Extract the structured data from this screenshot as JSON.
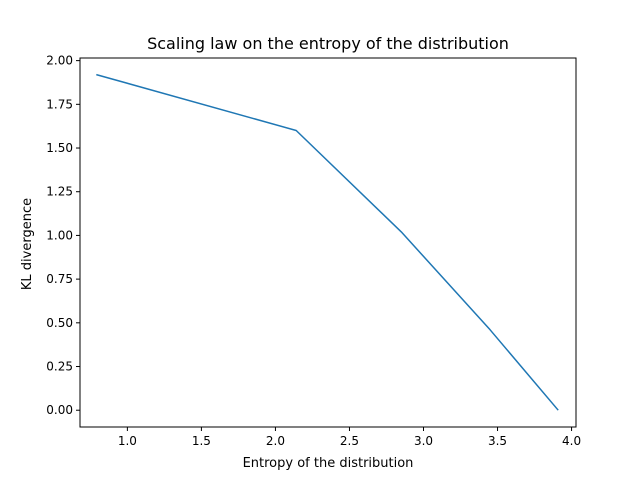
{
  "chart_data": {
    "type": "line",
    "title": "Scaling law on the entropy of the distribution",
    "xlabel": "Entropy of the distribution",
    "ylabel": "KL divergence",
    "xlim": [
      0.68,
      4.03
    ],
    "ylim": [
      -0.096,
      2.015
    ],
    "xticks": [
      1.0,
      1.5,
      2.0,
      2.5,
      3.0,
      3.5,
      4.0
    ],
    "xtick_labels": [
      "1.0",
      "1.5",
      "2.0",
      "2.5",
      "3.0",
      "3.5",
      "4.0"
    ],
    "yticks": [
      0.0,
      0.25,
      0.5,
      0.75,
      1.0,
      1.25,
      1.5,
      1.75,
      2.0
    ],
    "ytick_labels": [
      "0.00",
      "0.25",
      "0.50",
      "0.75",
      "1.00",
      "1.25",
      "1.50",
      "1.75",
      "2.00"
    ],
    "grid": false,
    "series": [
      {
        "color": "#1f77b4",
        "x": [
          0.79,
          2.14,
          2.85,
          3.45,
          3.91
        ],
        "y": [
          1.92,
          1.6,
          1.02,
          0.46,
          0.0
        ]
      }
    ]
  }
}
